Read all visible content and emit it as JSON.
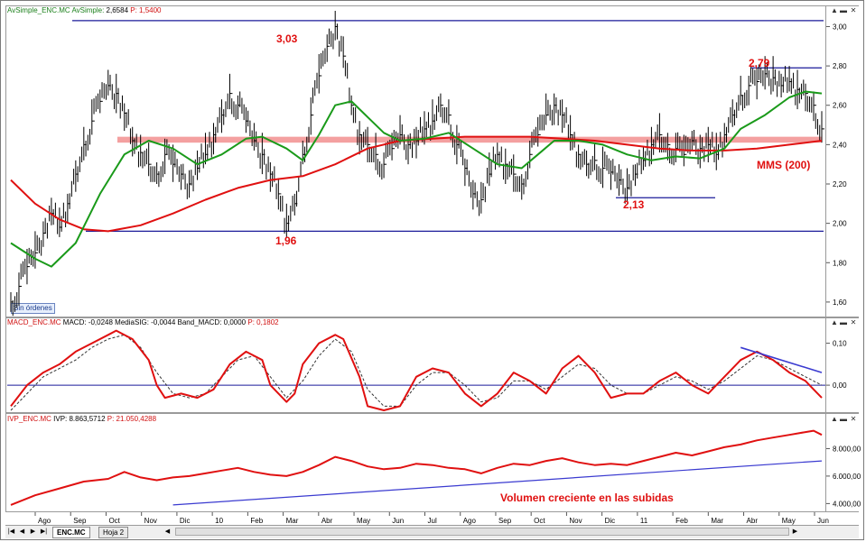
{
  "panes": {
    "price": {
      "header_name": "AvSimple_ENC.MC",
      "header_ind": "AvSimple:",
      "header_value": "2,6584",
      "header_p": "P: 1,5400",
      "badge": "Sin órdenes"
    },
    "macd": {
      "header_name": "MACD_ENC.MC",
      "header_vals": "MACD: -0,0248  MediaSIG: -0,0044  Band_MACD: 0,0000",
      "header_p": "P: 0,1802"
    },
    "ivp": {
      "header_name": "IVP_ENC.MC",
      "header_vals": "IVP: 8.863,5712",
      "header_p": "P: 21.050,4288"
    }
  },
  "tabs": {
    "active": "ENC.MC",
    "other": "Hoja 2"
  },
  "nav": {
    "first": "|◀",
    "prev": "◀",
    "next": "▶",
    "last": "▶|"
  },
  "colors": {
    "price_bars": "#000000",
    "sma_green": "#1a9a1a",
    "sma200_red": "#e01010",
    "support_band": "#f08080",
    "level_lines": "#1a1a9a",
    "macd_line": "#e01010",
    "macd_signal": "#333333",
    "ivp_line": "#e01010",
    "trend_blue": "#3a3ad0"
  },
  "chart_data": [
    {
      "type": "line",
      "title": "",
      "series_labels_shown": [
        "MMS (200)"
      ],
      "annotations": [
        {
          "text": "3,03",
          "x": "Abr",
          "y": 3.03
        },
        {
          "text": "1,96",
          "x": "Mar",
          "y": 1.96
        },
        {
          "text": "2,79",
          "x": "May",
          "y": 2.79
        },
        {
          "text": "2,13",
          "x": "Ene",
          "y": 2.13
        },
        {
          "text": "MMS (200)",
          "x": "May",
          "y": 2.32
        }
      ],
      "ylim": [
        1.54,
        3.08
      ],
      "y_ticks": [
        "1,60",
        "1,80",
        "2,00",
        "2,20",
        "2,40",
        "2,60",
        "2,80",
        "3,00"
      ],
      "y_tick_values": [
        1.6,
        1.8,
        2.0,
        2.2,
        2.4,
        2.6,
        2.8,
        3.0
      ],
      "horizontal_levels": [
        3.03,
        1.96,
        2.79,
        2.13
      ],
      "support_band": [
        2.41,
        2.44
      ],
      "x_span": [
        0,
        100
      ],
      "close": [
        [
          0,
          1.6
        ],
        [
          1,
          1.68
        ],
        [
          2,
          1.78
        ],
        [
          3,
          1.85
        ],
        [
          4,
          1.95
        ],
        [
          5,
          2.05
        ],
        [
          6,
          1.98
        ],
        [
          7,
          2.1
        ],
        [
          8,
          2.25
        ],
        [
          9,
          2.4
        ],
        [
          10,
          2.52
        ],
        [
          11,
          2.62
        ],
        [
          12,
          2.7
        ],
        [
          13,
          2.66
        ],
        [
          14,
          2.56
        ],
        [
          15,
          2.42
        ],
        [
          16,
          2.36
        ],
        [
          17,
          2.3
        ],
        [
          18,
          2.25
        ],
        [
          19,
          2.35
        ],
        [
          20,
          2.3
        ],
        [
          21,
          2.25
        ],
        [
          22,
          2.2
        ],
        [
          23,
          2.28
        ],
        [
          24,
          2.35
        ],
        [
          25,
          2.45
        ],
        [
          26,
          2.55
        ],
        [
          27,
          2.66
        ],
        [
          28,
          2.6
        ],
        [
          29,
          2.52
        ],
        [
          30,
          2.42
        ],
        [
          31,
          2.35
        ],
        [
          32,
          2.25
        ],
        [
          33,
          2.15
        ],
        [
          34,
          2.0
        ],
        [
          35,
          2.1
        ],
        [
          36,
          2.35
        ],
        [
          37,
          2.55
        ],
        [
          38,
          2.75
        ],
        [
          39,
          2.9
        ],
        [
          40,
          3.0
        ],
        [
          41,
          2.85
        ],
        [
          42,
          2.6
        ],
        [
          43,
          2.45
        ],
        [
          44,
          2.4
        ],
        [
          45,
          2.35
        ],
        [
          46,
          2.3
        ],
        [
          47,
          2.38
        ],
        [
          48,
          2.45
        ],
        [
          49,
          2.4
        ],
        [
          50,
          2.42
        ],
        [
          51,
          2.48
        ],
        [
          52,
          2.52
        ],
        [
          53,
          2.6
        ],
        [
          54,
          2.55
        ],
        [
          55,
          2.4
        ],
        [
          56,
          2.28
        ],
        [
          57,
          2.15
        ],
        [
          58,
          2.12
        ],
        [
          59,
          2.25
        ],
        [
          60,
          2.35
        ],
        [
          61,
          2.3
        ],
        [
          62,
          2.25
        ],
        [
          63,
          2.2
        ],
        [
          64,
          2.35
        ],
        [
          65,
          2.45
        ],
        [
          66,
          2.55
        ],
        [
          67,
          2.6
        ],
        [
          68,
          2.55
        ],
        [
          69,
          2.45
        ],
        [
          70,
          2.35
        ],
        [
          71,
          2.3
        ],
        [
          72,
          2.32
        ],
        [
          73,
          2.28
        ],
        [
          74,
          2.26
        ],
        [
          75,
          2.22
        ],
        [
          76,
          2.18
        ],
        [
          77,
          2.25
        ],
        [
          78,
          2.32
        ],
        [
          79,
          2.4
        ],
        [
          80,
          2.45
        ],
        [
          81,
          2.4
        ],
        [
          82,
          2.38
        ],
        [
          83,
          2.35
        ],
        [
          84,
          2.42
        ],
        [
          85,
          2.38
        ],
        [
          86,
          2.4
        ],
        [
          87,
          2.35
        ],
        [
          88,
          2.45
        ],
        [
          89,
          2.55
        ],
        [
          90,
          2.65
        ],
        [
          91,
          2.7
        ],
        [
          92,
          2.72
        ],
        [
          93,
          2.76
        ],
        [
          94,
          2.74
        ],
        [
          95,
          2.7
        ],
        [
          96,
          2.72
        ],
        [
          97,
          2.68
        ],
        [
          98,
          2.66
        ],
        [
          99,
          2.6
        ],
        [
          100,
          2.48
        ]
      ],
      "sma_green": [
        [
          0,
          1.9
        ],
        [
          3,
          1.82
        ],
        [
          5,
          1.78
        ],
        [
          8,
          1.9
        ],
        [
          11,
          2.15
        ],
        [
          14,
          2.35
        ],
        [
          17,
          2.42
        ],
        [
          20,
          2.38
        ],
        [
          23,
          2.3
        ],
        [
          26,
          2.35
        ],
        [
          29,
          2.43
        ],
        [
          31,
          2.44
        ],
        [
          34,
          2.38
        ],
        [
          36,
          2.32
        ],
        [
          38,
          2.45
        ],
        [
          40,
          2.6
        ],
        [
          42,
          2.62
        ],
        [
          44,
          2.54
        ],
        [
          46,
          2.46
        ],
        [
          48,
          2.42
        ],
        [
          51,
          2.43
        ],
        [
          54,
          2.46
        ],
        [
          57,
          2.38
        ],
        [
          60,
          2.3
        ],
        [
          63,
          2.28
        ],
        [
          65,
          2.35
        ],
        [
          67,
          2.42
        ],
        [
          70,
          2.42
        ],
        [
          73,
          2.4
        ],
        [
          76,
          2.35
        ],
        [
          79,
          2.32
        ],
        [
          82,
          2.34
        ],
        [
          85,
          2.33
        ],
        [
          88,
          2.38
        ],
        [
          90,
          2.48
        ],
        [
          93,
          2.55
        ],
        [
          96,
          2.64
        ],
        [
          98,
          2.67
        ],
        [
          100,
          2.66
        ]
      ],
      "sma200_red": [
        [
          0,
          2.22
        ],
        [
          3,
          2.1
        ],
        [
          6,
          2.02
        ],
        [
          9,
          1.97
        ],
        [
          12,
          1.96
        ],
        [
          16,
          1.99
        ],
        [
          20,
          2.05
        ],
        [
          24,
          2.12
        ],
        [
          28,
          2.18
        ],
        [
          32,
          2.22
        ],
        [
          36,
          2.24
        ],
        [
          40,
          2.3
        ],
        [
          44,
          2.38
        ],
        [
          48,
          2.42
        ],
        [
          52,
          2.43
        ],
        [
          56,
          2.44
        ],
        [
          60,
          2.44
        ],
        [
          64,
          2.44
        ],
        [
          68,
          2.43
        ],
        [
          72,
          2.42
        ],
        [
          76,
          2.4
        ],
        [
          80,
          2.38
        ],
        [
          84,
          2.37
        ],
        [
          88,
          2.37
        ],
        [
          92,
          2.38
        ],
        [
          96,
          2.4
        ],
        [
          100,
          2.42
        ]
      ],
      "x_labels": [
        "Ago",
        "Sep",
        "Oct",
        "Nov",
        "Dic",
        "10",
        "Feb",
        "Mar",
        "Abr",
        "May",
        "Jun",
        "Jul",
        "Ago",
        "Sep",
        "Oct",
        "Nov",
        "Dic",
        "11",
        "Feb",
        "Mar",
        "Abr",
        "May",
        "Jun"
      ]
    },
    {
      "type": "line",
      "title": "",
      "ylim": [
        -0.06,
        0.14
      ],
      "y_ticks": [
        "0,00",
        "0,10"
      ],
      "y_tick_values": [
        0.0,
        0.1
      ],
      "zero_line": 0.0,
      "macd": [
        [
          0,
          -0.05
        ],
        [
          2,
          0.0
        ],
        [
          4,
          0.03
        ],
        [
          6,
          0.05
        ],
        [
          8,
          0.08
        ],
        [
          10,
          0.1
        ],
        [
          12,
          0.12
        ],
        [
          13,
          0.13
        ],
        [
          15,
          0.11
        ],
        [
          17,
          0.06
        ],
        [
          18,
          0.0
        ],
        [
          19,
          -0.03
        ],
        [
          21,
          -0.02
        ],
        [
          23,
          -0.03
        ],
        [
          25,
          -0.01
        ],
        [
          27,
          0.05
        ],
        [
          29,
          0.08
        ],
        [
          31,
          0.06
        ],
        [
          32,
          0.0
        ],
        [
          34,
          -0.04
        ],
        [
          35,
          -0.02
        ],
        [
          36,
          0.05
        ],
        [
          38,
          0.1
        ],
        [
          40,
          0.12
        ],
        [
          41,
          0.11
        ],
        [
          43,
          0.02
        ],
        [
          44,
          -0.05
        ],
        [
          46,
          -0.06
        ],
        [
          48,
          -0.05
        ],
        [
          50,
          0.02
        ],
        [
          52,
          0.04
        ],
        [
          54,
          0.03
        ],
        [
          56,
          -0.02
        ],
        [
          58,
          -0.05
        ],
        [
          60,
          -0.02
        ],
        [
          62,
          0.03
        ],
        [
          64,
          0.01
        ],
        [
          66,
          -0.02
        ],
        [
          68,
          0.04
        ],
        [
          70,
          0.07
        ],
        [
          72,
          0.03
        ],
        [
          74,
          -0.03
        ],
        [
          76,
          -0.02
        ],
        [
          78,
          -0.02
        ],
        [
          80,
          0.01
        ],
        [
          82,
          0.03
        ],
        [
          84,
          0.0
        ],
        [
          86,
          -0.02
        ],
        [
          88,
          0.02
        ],
        [
          90,
          0.06
        ],
        [
          92,
          0.08
        ],
        [
          94,
          0.06
        ],
        [
          96,
          0.03
        ],
        [
          98,
          0.01
        ],
        [
          99,
          -0.01
        ],
        [
          100,
          -0.03
        ]
      ],
      "signal": [
        [
          0,
          -0.06
        ],
        [
          2,
          -0.02
        ],
        [
          4,
          0.02
        ],
        [
          6,
          0.04
        ],
        [
          8,
          0.06
        ],
        [
          10,
          0.09
        ],
        [
          12,
          0.11
        ],
        [
          14,
          0.12
        ],
        [
          16,
          0.09
        ],
        [
          18,
          0.03
        ],
        [
          20,
          -0.02
        ],
        [
          22,
          -0.03
        ],
        [
          24,
          -0.02
        ],
        [
          26,
          0.02
        ],
        [
          28,
          0.06
        ],
        [
          30,
          0.07
        ],
        [
          32,
          0.02
        ],
        [
          34,
          -0.03
        ],
        [
          36,
          0.01
        ],
        [
          38,
          0.07
        ],
        [
          40,
          0.11
        ],
        [
          42,
          0.08
        ],
        [
          44,
          -0.01
        ],
        [
          46,
          -0.05
        ],
        [
          48,
          -0.05
        ],
        [
          50,
          0.0
        ],
        [
          52,
          0.03
        ],
        [
          54,
          0.03
        ],
        [
          56,
          0.0
        ],
        [
          58,
          -0.04
        ],
        [
          60,
          -0.03
        ],
        [
          62,
          0.01
        ],
        [
          64,
          0.01
        ],
        [
          66,
          -0.01
        ],
        [
          68,
          0.02
        ],
        [
          70,
          0.05
        ],
        [
          72,
          0.04
        ],
        [
          74,
          0.0
        ],
        [
          76,
          -0.02
        ],
        [
          78,
          -0.02
        ],
        [
          80,
          0.0
        ],
        [
          82,
          0.02
        ],
        [
          84,
          0.01
        ],
        [
          86,
          -0.01
        ],
        [
          88,
          0.01
        ],
        [
          90,
          0.04
        ],
        [
          92,
          0.07
        ],
        [
          94,
          0.06
        ],
        [
          96,
          0.04
        ],
        [
          98,
          0.02
        ],
        [
          100,
          0.0
        ]
      ],
      "trendline": [
        [
          90,
          0.09
        ],
        [
          100,
          0.03
        ]
      ]
    },
    {
      "type": "line",
      "title": "",
      "annotations": [
        {
          "text": "Volumen creciente en las subidas",
          "x": 60,
          "y": 4600
        }
      ],
      "ylim": [
        3500,
        9800
      ],
      "y_ticks": [
        "4.000,00",
        "6.000,00",
        "8.000,00"
      ],
      "y_tick_values": [
        4000,
        6000,
        8000
      ],
      "ivp": [
        [
          0,
          3900
        ],
        [
          3,
          4600
        ],
        [
          6,
          5100
        ],
        [
          9,
          5600
        ],
        [
          12,
          5800
        ],
        [
          14,
          6300
        ],
        [
          16,
          5900
        ],
        [
          18,
          5700
        ],
        [
          20,
          5900
        ],
        [
          22,
          6000
        ],
        [
          24,
          6200
        ],
        [
          26,
          6400
        ],
        [
          28,
          6600
        ],
        [
          30,
          6300
        ],
        [
          32,
          6100
        ],
        [
          34,
          6000
        ],
        [
          36,
          6300
        ],
        [
          38,
          6800
        ],
        [
          40,
          7400
        ],
        [
          42,
          7100
        ],
        [
          44,
          6700
        ],
        [
          46,
          6500
        ],
        [
          48,
          6600
        ],
        [
          50,
          6900
        ],
        [
          52,
          6800
        ],
        [
          54,
          6600
        ],
        [
          56,
          6500
        ],
        [
          58,
          6200
        ],
        [
          60,
          6600
        ],
        [
          62,
          6900
        ],
        [
          64,
          6800
        ],
        [
          66,
          7100
        ],
        [
          68,
          7300
        ],
        [
          70,
          7000
        ],
        [
          72,
          6800
        ],
        [
          74,
          6900
        ],
        [
          76,
          6800
        ],
        [
          78,
          7100
        ],
        [
          80,
          7400
        ],
        [
          82,
          7700
        ],
        [
          84,
          7500
        ],
        [
          86,
          7800
        ],
        [
          88,
          8100
        ],
        [
          90,
          8300
        ],
        [
          92,
          8600
        ],
        [
          94,
          8800
        ],
        [
          96,
          9000
        ],
        [
          98,
          9200
        ],
        [
          99,
          9300
        ],
        [
          100,
          9000
        ]
      ],
      "trendline": [
        [
          20,
          3900
        ],
        [
          100,
          7100
        ]
      ]
    }
  ]
}
